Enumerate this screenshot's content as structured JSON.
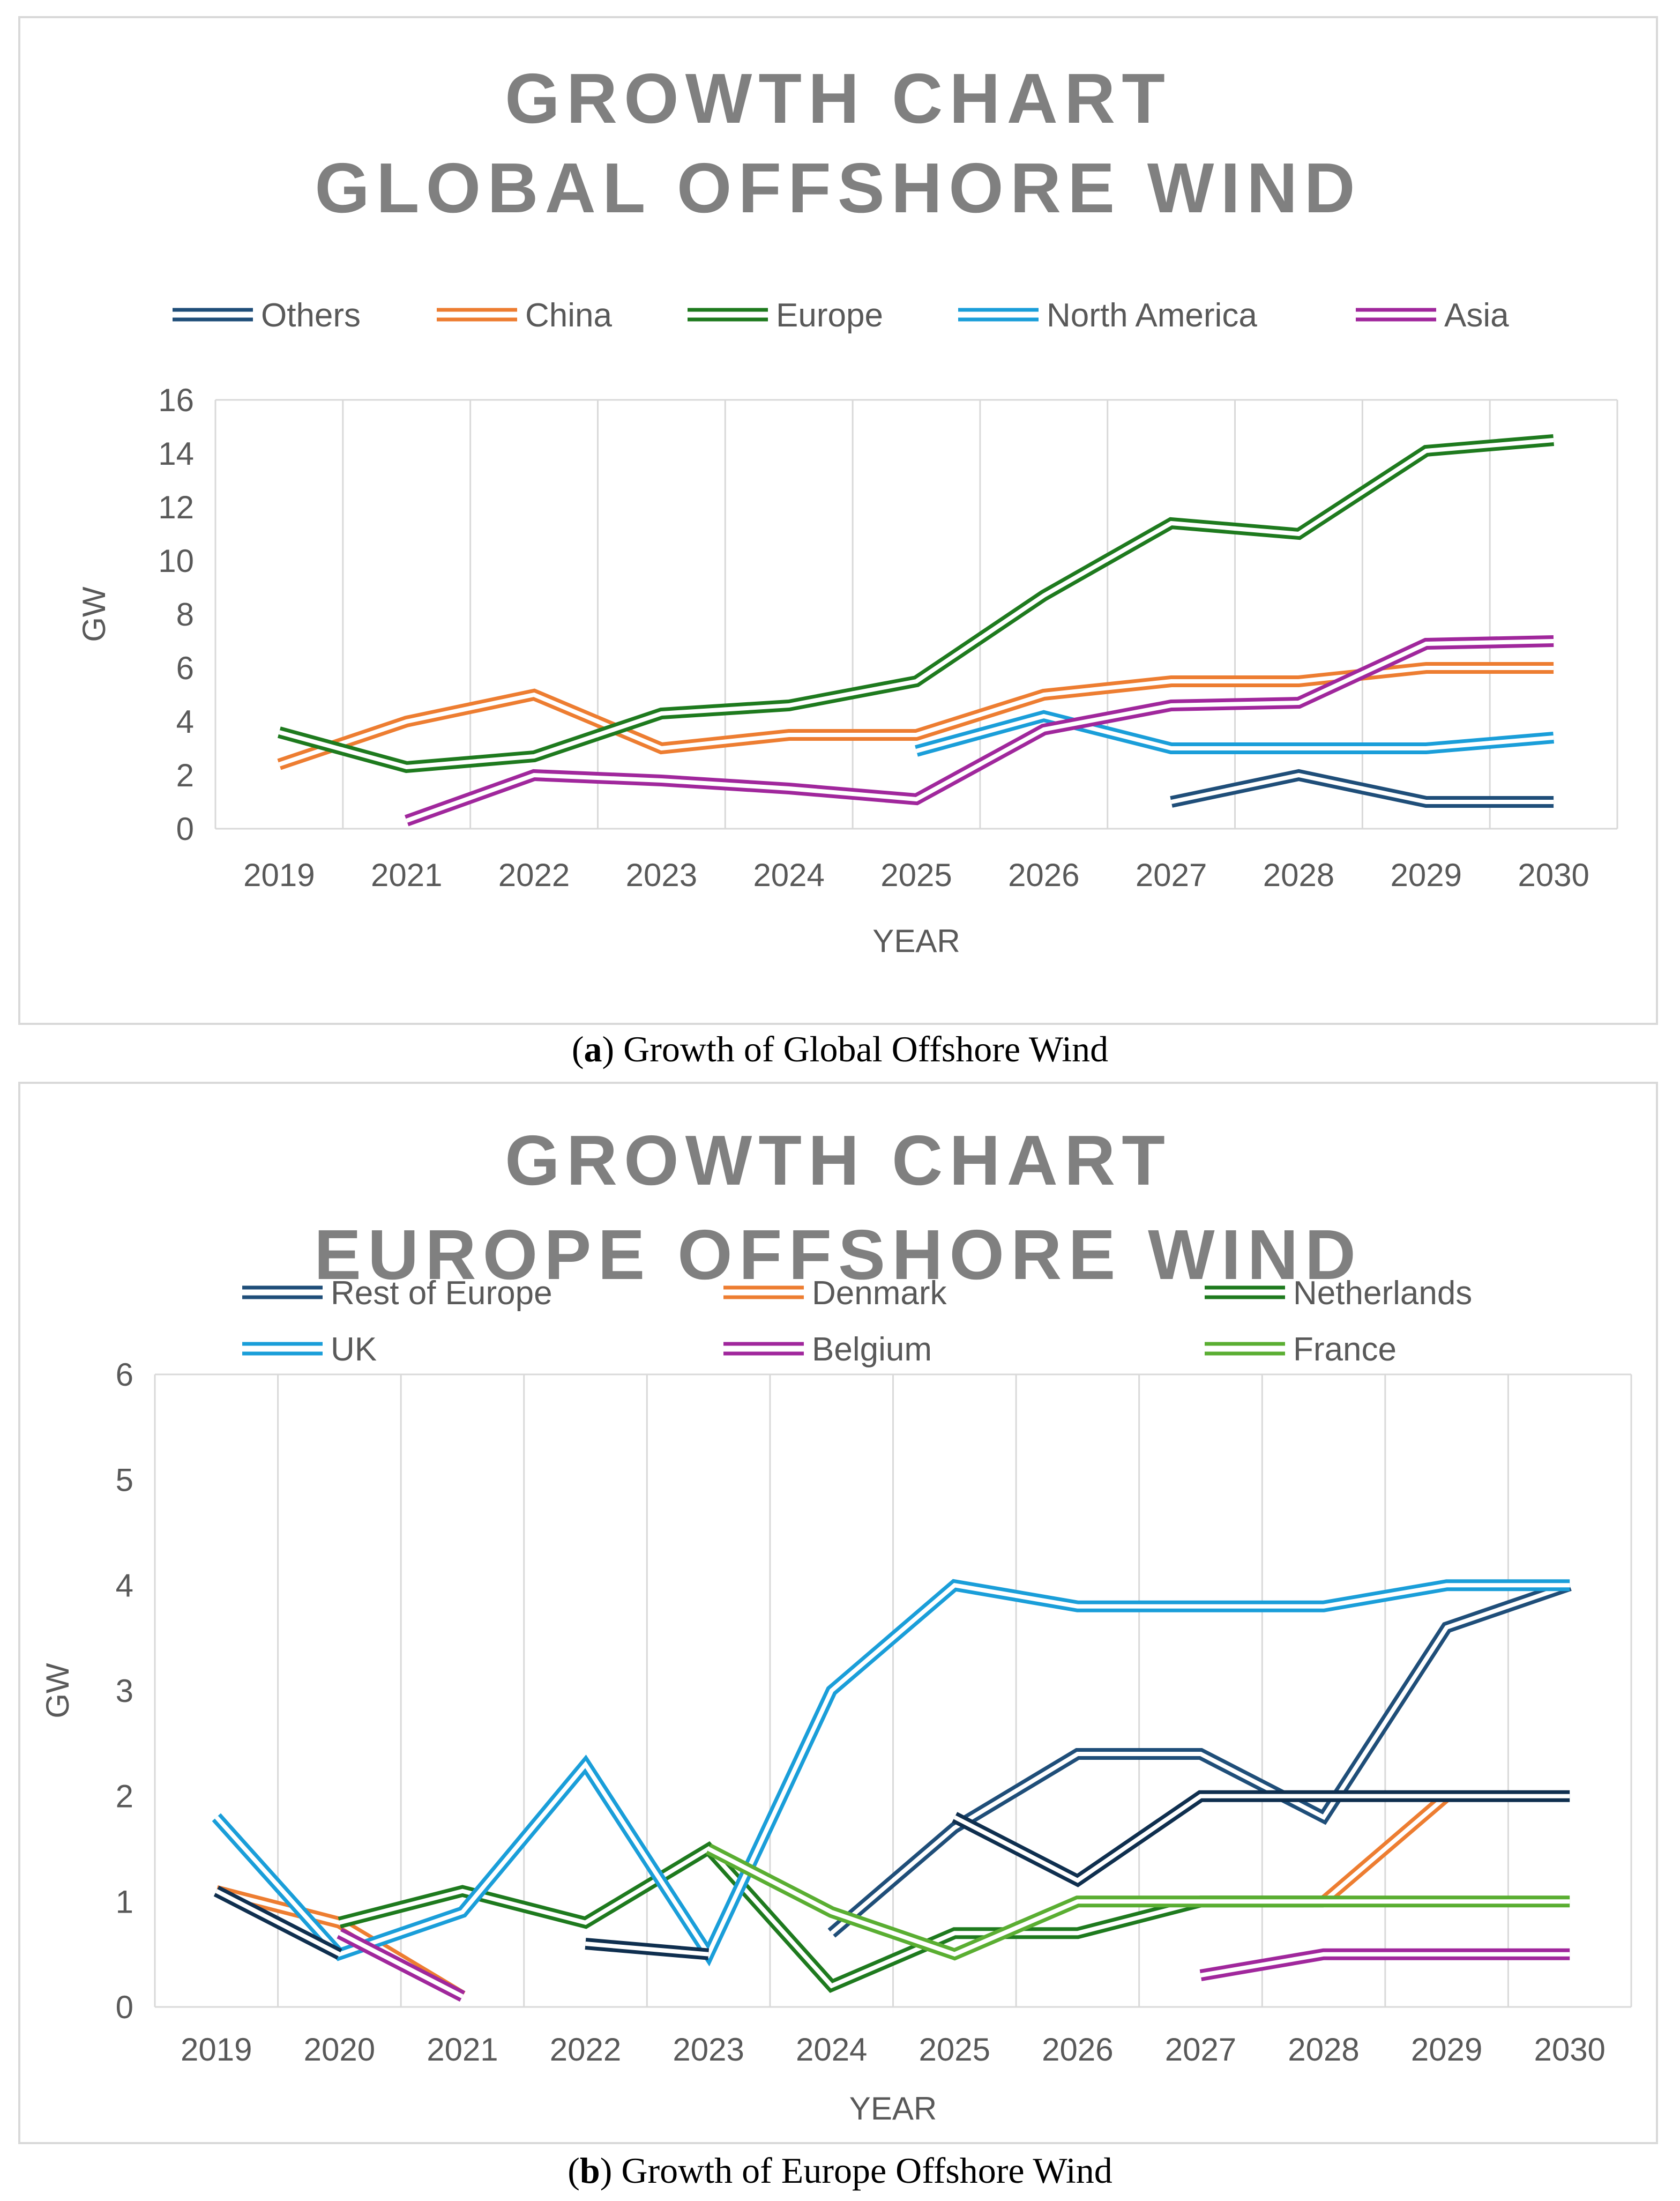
{
  "figure_a": {
    "caption_letter": "a",
    "caption_text": "Growth of Global Offshore Wind"
  },
  "figure_b": {
    "caption_letter": "b",
    "caption_text": "Growth of Europe Offshore Wind"
  },
  "chart_data": [
    {
      "id": "a",
      "type": "line",
      "title_lines": [
        "GROWTH CHART",
        "GLOBAL OFFSHORE WIND"
      ],
      "xlabel": "YEAR",
      "ylabel": "GW",
      "ylim": [
        0,
        16
      ],
      "yticks": [
        0,
        2,
        4,
        6,
        8,
        10,
        12,
        14,
        16
      ],
      "categories": [
        "2019",
        "2021",
        "2022",
        "2023",
        "2024",
        "2025",
        "2026",
        "2027",
        "2028",
        "2029",
        "2030"
      ],
      "grid": "vertical",
      "legend_position": "top",
      "series": [
        {
          "name": "Others",
          "color": "#1f4e79",
          "values": [
            null,
            null,
            null,
            null,
            null,
            null,
            null,
            1.0,
            2.0,
            1.0,
            1.0
          ]
        },
        {
          "name": "China",
          "color": "#ed7d31",
          "values": [
            2.4,
            4.0,
            5.0,
            3.0,
            3.5,
            3.5,
            5.0,
            5.5,
            5.5,
            6.0,
            6.0
          ]
        },
        {
          "name": "Europe",
          "color": "#1e7a1e",
          "values": [
            3.6,
            2.3,
            2.7,
            4.3,
            4.6,
            5.5,
            8.7,
            11.4,
            11.0,
            14.1,
            14.5
          ]
        },
        {
          "name": "North America",
          "color": "#1a9ed9",
          "values": [
            null,
            null,
            null,
            null,
            null,
            2.9,
            4.2,
            3.0,
            3.0,
            3.0,
            3.4
          ]
        },
        {
          "name": "Asia",
          "color": "#a0279c",
          "values": [
            null,
            0.3,
            2.0,
            1.8,
            1.5,
            1.1,
            3.7,
            4.6,
            4.7,
            6.9,
            7.0
          ]
        }
      ]
    },
    {
      "id": "b",
      "type": "line",
      "title_lines": [
        "GROWTH CHART",
        "EUROPE OFFSHORE WIND"
      ],
      "xlabel": "YEAR",
      "ylabel": "GW",
      "ylim": [
        0,
        6
      ],
      "yticks": [
        0,
        1,
        2,
        3,
        4,
        5,
        6
      ],
      "categories": [
        "2019",
        "2020",
        "2021",
        "2022",
        "2023",
        "2024",
        "2025",
        "2026",
        "2027",
        "2028",
        "2029",
        "2030"
      ],
      "grid": "vertical",
      "legend_position": "top",
      "series": [
        {
          "name": "Rest of Europe",
          "color": "#1f4e79",
          "values": [
            null,
            null,
            null,
            null,
            null,
            0.7,
            1.7,
            2.4,
            2.4,
            1.8,
            3.6,
            4.0
          ]
        },
        {
          "name": "Denmark",
          "color": "#ed7d31",
          "values": [
            1.1,
            0.8,
            0.1,
            null,
            null,
            null,
            null,
            null,
            null,
            1.0,
            2.0,
            null
          ]
        },
        {
          "name": "Netherlands",
          "color": "#1e7a1e",
          "values": [
            null,
            0.8,
            1.1,
            0.8,
            1.5,
            0.2,
            0.7,
            0.7,
            1.0,
            1.0,
            null,
            null
          ]
        },
        {
          "name": "UK",
          "color": "#1a9ed9",
          "values": [
            1.8,
            0.5,
            0.9,
            2.3,
            0.5,
            3.0,
            4.0,
            3.8,
            3.8,
            3.8,
            4.0,
            4.0
          ]
        },
        {
          "name": "Belgium",
          "color": "#a0279c",
          "values": [
            null,
            0.7,
            0.1,
            null,
            null,
            null,
            null,
            null,
            0.3,
            0.5,
            0.5,
            0.5
          ]
        },
        {
          "name": "France",
          "color": "#5aae32",
          "values": [
            null,
            null,
            null,
            null,
            1.5,
            0.9,
            0.5,
            1.0,
            1.0,
            1.0,
            1.0,
            1.0
          ]
        },
        {
          "name": "",
          "color": "#0f2f4f",
          "values": [
            1.1,
            0.5,
            null,
            0.6,
            0.5,
            null,
            1.8,
            1.2,
            2.0,
            2.0,
            2.0,
            2.0
          ]
        }
      ]
    }
  ]
}
